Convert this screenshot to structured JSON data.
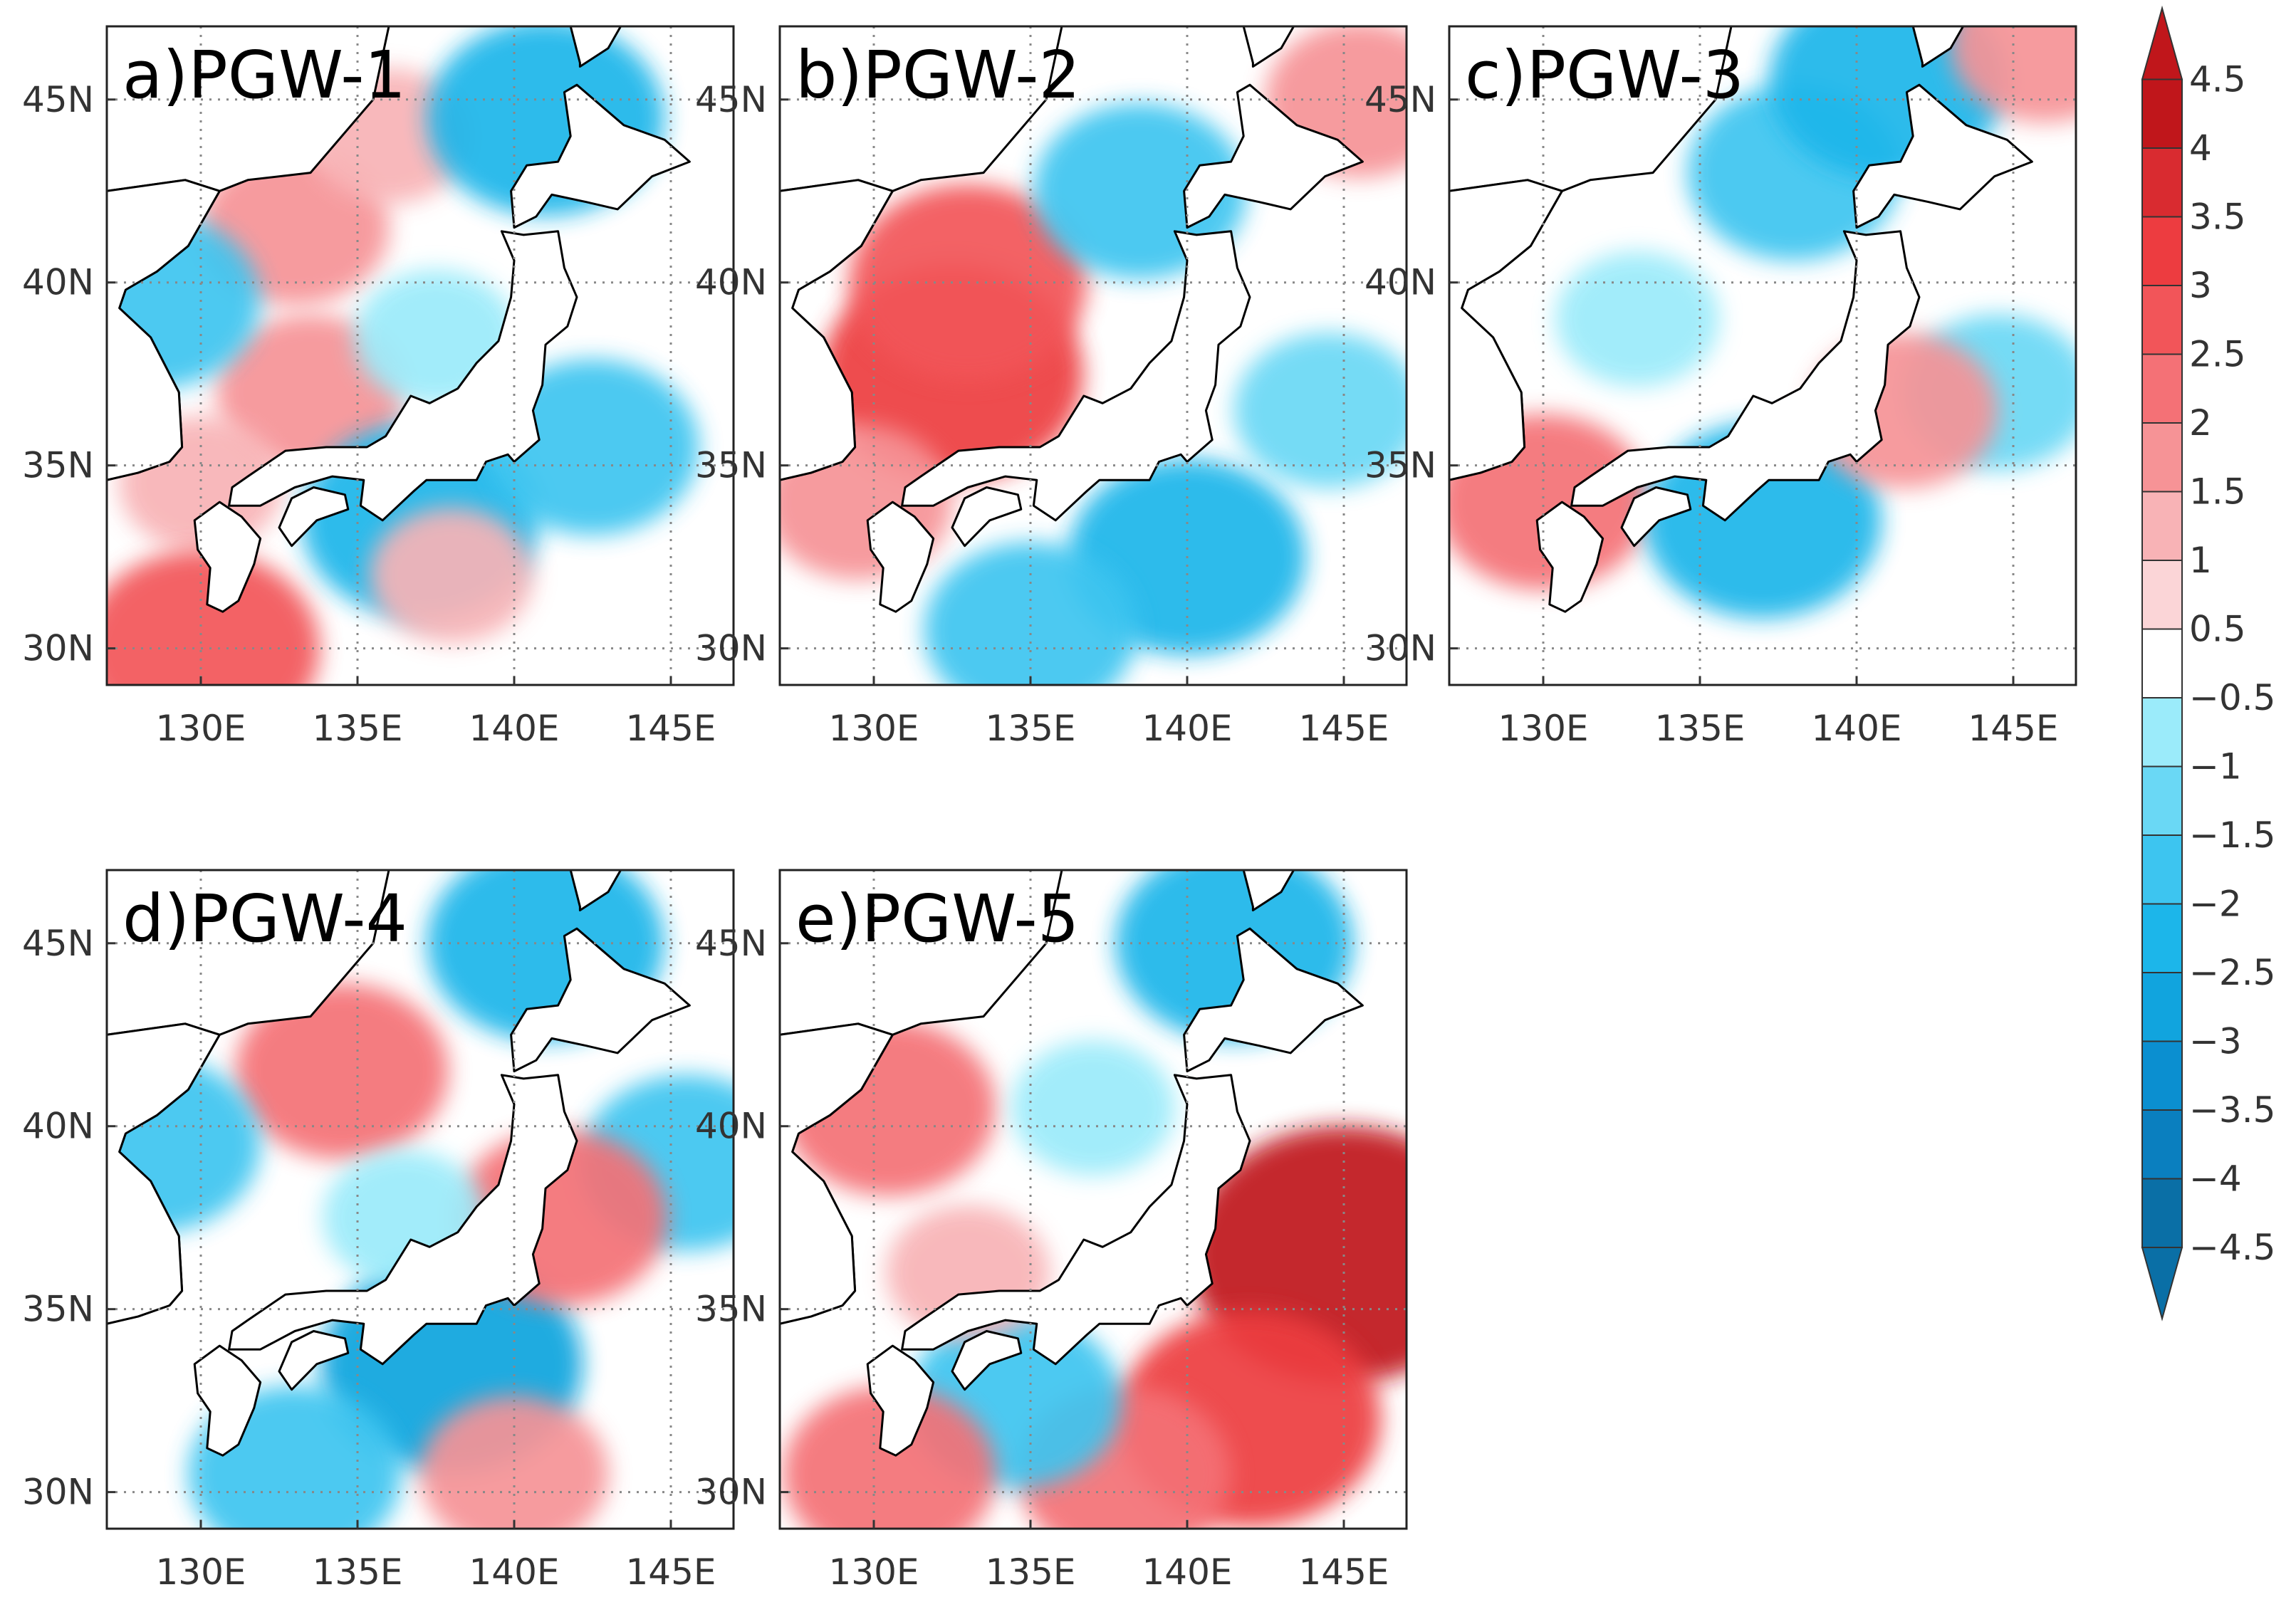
{
  "figure": {
    "type": "map-panels",
    "variable_description": "PGW anomaly fields over Japan",
    "lon_range": [
      127,
      147
    ],
    "lat_range": [
      29,
      47
    ],
    "lon_ticks": [
      130,
      135,
      140,
      145
    ],
    "lat_ticks": [
      30,
      35,
      40,
      45
    ],
    "lon_tick_labels": [
      "130E",
      "135E",
      "140E",
      "145E"
    ],
    "lat_tick_labels": [
      "30N",
      "35N",
      "40N",
      "45N"
    ]
  },
  "panels": [
    {
      "id": "a",
      "title": "a)PGW-1",
      "anomalies": [
        {
          "lon": 133,
          "lat": 41.5,
          "value": 1.5
        },
        {
          "lon": 133.5,
          "lat": 37,
          "value": 1.5
        },
        {
          "lon": 130,
          "lat": 34.5,
          "value": 1.0
        },
        {
          "lon": 130,
          "lat": 30,
          "value": 2.5
        },
        {
          "lon": 136,
          "lat": 44,
          "value": 1.0
        },
        {
          "lon": 128.5,
          "lat": 39.5,
          "value": -2.0
        },
        {
          "lon": 137.5,
          "lat": 38.5,
          "value": -1.0
        },
        {
          "lon": 137,
          "lat": 33.5,
          "value": -2.5
        },
        {
          "lon": 142.5,
          "lat": 35.5,
          "value": -2.0
        },
        {
          "lon": 141,
          "lat": 44.5,
          "value": -2.5
        },
        {
          "lon": 138,
          "lat": 32,
          "value": 1.0
        }
      ]
    },
    {
      "id": "b",
      "title": "b)PGW-2",
      "anomalies": [
        {
          "lon": 132.5,
          "lat": 37.5,
          "value": 3.0
        },
        {
          "lon": 133,
          "lat": 40,
          "value": 2.5
        },
        {
          "lon": 138.5,
          "lat": 42.5,
          "value": -2.0
        },
        {
          "lon": 140,
          "lat": 32.5,
          "value": -2.5
        },
        {
          "lon": 135,
          "lat": 30.5,
          "value": -2.0
        },
        {
          "lon": 144.5,
          "lat": 36.5,
          "value": -1.5
        },
        {
          "lon": 145.5,
          "lat": 45,
          "value": 1.5
        },
        {
          "lon": 129.5,
          "lat": 34,
          "value": 1.5
        }
      ]
    },
    {
      "id": "c",
      "title": "c)PGW-3",
      "anomalies": [
        {
          "lon": 130,
          "lat": 34,
          "value": 2.0
        },
        {
          "lon": 138,
          "lat": 43,
          "value": -2.0
        },
        {
          "lon": 137,
          "lat": 33.5,
          "value": -2.5
        },
        {
          "lon": 144.5,
          "lat": 37,
          "value": -1.5
        },
        {
          "lon": 133,
          "lat": 39,
          "value": -1.0
        },
        {
          "lon": 141.5,
          "lat": 36.5,
          "value": 1.5
        },
        {
          "lon": 141,
          "lat": 45.5,
          "value": -2.5
        },
        {
          "lon": 146,
          "lat": 46.5,
          "value": 1.5
        }
      ]
    },
    {
      "id": "d",
      "title": "d)PGW-4",
      "anomalies": [
        {
          "lon": 134.5,
          "lat": 41.5,
          "value": 2.0
        },
        {
          "lon": 128.5,
          "lat": 39.5,
          "value": -2.0
        },
        {
          "lon": 138,
          "lat": 33.5,
          "value": -3.0
        },
        {
          "lon": 133,
          "lat": 30.5,
          "value": -2.0
        },
        {
          "lon": 145.5,
          "lat": 39,
          "value": -2.0
        },
        {
          "lon": 141.5,
          "lat": 37.5,
          "value": 2.0
        },
        {
          "lon": 140,
          "lat": 30.5,
          "value": 1.5
        },
        {
          "lon": 141,
          "lat": 45,
          "value": -2.5
        },
        {
          "lon": 136.5,
          "lat": 37.5,
          "value": -1.0
        }
      ]
    },
    {
      "id": "e",
      "title": "e)PGW-5",
      "anomalies": [
        {
          "lon": 130.5,
          "lat": 40.5,
          "value": 2.0
        },
        {
          "lon": 145,
          "lat": 36.5,
          "value": 4.0
        },
        {
          "lon": 142,
          "lat": 32,
          "value": 3.0
        },
        {
          "lon": 138,
          "lat": 30.5,
          "value": 2.0
        },
        {
          "lon": 134.5,
          "lat": 32.5,
          "value": -2.0
        },
        {
          "lon": 130.5,
          "lat": 30.5,
          "value": 2.0
        },
        {
          "lon": 137,
          "lat": 40.5,
          "value": -1.0
        },
        {
          "lon": 141.5,
          "lat": 45,
          "value": -2.5
        },
        {
          "lon": 133,
          "lat": 36,
          "value": 1.0
        }
      ]
    }
  ],
  "colorbar": {
    "levels": [
      -4.5,
      -4,
      -3.5,
      -3,
      -2.5,
      -2,
      -1.5,
      -1,
      -0.5,
      0.5,
      1,
      1.5,
      2,
      2.5,
      3,
      3.5,
      4,
      4.5
    ],
    "labels": [
      "4.5",
      "4",
      "3.5",
      "3",
      "2.5",
      "2",
      "1.5",
      "1",
      "0.5",
      "−0.5",
      "−1",
      "−1.5",
      "−2",
      "−2.5",
      "−3",
      "−3.5",
      "−4",
      "−4.5"
    ],
    "colors": [
      "#0a6fa6",
      "#0a7fbf",
      "#0b8fd0",
      "#11a4de",
      "#1cb6ea",
      "#3dc5f0",
      "#6ad8f5",
      "#9bebfa",
      "#ffffff",
      "#fbd5d7",
      "#f8b3b6",
      "#f69396",
      "#f47176",
      "#f25559",
      "#ed3c40",
      "#d92b30",
      "#c0161b"
    ],
    "under_color": "#0a6fa6",
    "over_color": "#c0161b"
  },
  "coastline": {
    "korea": [
      [
        127,
        42.5
      ],
      [
        129.5,
        42.8
      ],
      [
        130.6,
        42.5
      ],
      [
        129.6,
        41
      ],
      [
        128.6,
        40.3
      ],
      [
        127.6,
        39.8
      ],
      [
        127.4,
        39.3
      ],
      [
        128.4,
        38.5
      ],
      [
        129.3,
        37
      ],
      [
        129.4,
        35.5
      ],
      [
        129,
        35.1
      ],
      [
        128,
        34.8
      ],
      [
        127,
        34.6
      ]
    ],
    "honshu": [
      [
        139.6,
        41.4
      ],
      [
        140.3,
        41.3
      ],
      [
        141.4,
        41.4
      ],
      [
        141.6,
        40.4
      ],
      [
        142,
        39.6
      ],
      [
        141.7,
        38.8
      ],
      [
        141,
        38.3
      ],
      [
        140.9,
        37.2
      ],
      [
        140.6,
        36.5
      ],
      [
        140.8,
        35.7
      ],
      [
        140,
        35.1
      ],
      [
        139.8,
        35.3
      ],
      [
        139.1,
        35.1
      ],
      [
        138.8,
        34.6
      ],
      [
        137.8,
        34.6
      ],
      [
        137.2,
        34.6
      ],
      [
        136.8,
        34.3
      ],
      [
        135.8,
        33.5
      ],
      [
        135.1,
        33.9
      ],
      [
        135.2,
        34.6
      ],
      [
        134.2,
        34.7
      ],
      [
        133,
        34.4
      ],
      [
        131.9,
        33.9
      ],
      [
        130.9,
        33.9
      ],
      [
        131,
        34.4
      ],
      [
        131.5,
        34.7
      ],
      [
        132.7,
        35.4
      ],
      [
        134,
        35.5
      ],
      [
        135.3,
        35.5
      ],
      [
        135.9,
        35.8
      ],
      [
        136.7,
        36.9
      ],
      [
        137.3,
        36.7
      ],
      [
        138.2,
        37.1
      ],
      [
        138.8,
        37.8
      ],
      [
        139.5,
        38.4
      ],
      [
        139.9,
        39.6
      ],
      [
        140,
        40.6
      ]
    ],
    "hokkaido": [
      [
        140,
        41.5
      ],
      [
        140.7,
        41.8
      ],
      [
        141.2,
        42.4
      ],
      [
        142.3,
        42.2
      ],
      [
        143.3,
        42
      ],
      [
        144.4,
        42.9
      ],
      [
        145.6,
        43.3
      ],
      [
        144.8,
        43.9
      ],
      [
        143.5,
        44.3
      ],
      [
        142,
        45.4
      ],
      [
        141.6,
        45.2
      ],
      [
        141.8,
        44
      ],
      [
        141.4,
        43.3
      ],
      [
        140.4,
        43.2
      ],
      [
        139.9,
        42.5
      ]
    ],
    "shikoku": [
      [
        132.5,
        33.3
      ],
      [
        132.9,
        32.8
      ],
      [
        133.7,
        33.5
      ],
      [
        134.7,
        33.8
      ],
      [
        134.6,
        34.2
      ],
      [
        133.6,
        34.4
      ],
      [
        132.9,
        34.1
      ]
    ],
    "kyushu": [
      [
        129.8,
        33.5
      ],
      [
        130.6,
        34
      ],
      [
        131.3,
        33.6
      ],
      [
        131.9,
        33
      ],
      [
        131.7,
        32.3
      ],
      [
        131.2,
        31.3
      ],
      [
        130.7,
        31
      ],
      [
        130.2,
        31.2
      ],
      [
        130.3,
        32.2
      ],
      [
        129.9,
        32.7
      ]
    ],
    "sakhalin": [
      [
        141.8,
        47
      ],
      [
        142.1,
        46
      ],
      [
        142.1,
        45.9
      ],
      [
        143,
        46.4
      ],
      [
        143.4,
        47
      ]
    ]
  }
}
